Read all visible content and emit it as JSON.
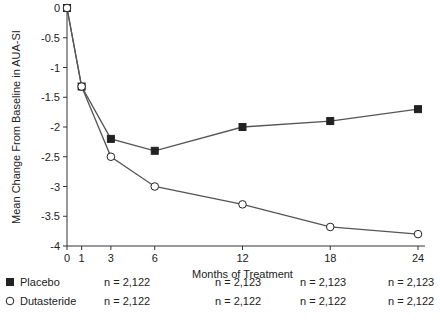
{
  "chart_data": {
    "type": "line",
    "x_label": "Months of Treatment",
    "y_label": "Mean Change From Baseline in AUA-SI",
    "x": [
      0,
      1,
      3,
      6,
      12,
      18,
      24
    ],
    "xlim": [
      0,
      24
    ],
    "xticks": [
      0,
      1,
      3,
      6,
      12,
      18,
      24
    ],
    "ylim": [
      -4,
      0
    ],
    "yticks": [
      0,
      -0.5,
      -1,
      -1.5,
      -2,
      -2.5,
      -3,
      -3.5,
      -4
    ],
    "grid": false,
    "series": [
      {
        "name": "Placebo",
        "color": "#222222",
        "marker": "square",
        "values": [
          0,
          -1.32,
          -2.2,
          -2.4,
          -2.0,
          -1.9,
          -1.7
        ],
        "n_labels": [
          "n = 2,122",
          "n = 2,123",
          "n = 2,123",
          "n = 2,123"
        ]
      },
      {
        "name": "Dutasteride",
        "color": "#222222",
        "marker": "circle",
        "values": [
          0,
          -1.32,
          -2.5,
          -3.0,
          -3.3,
          -3.68,
          -3.8
        ],
        "n_labels": [
          "n = 2,122",
          "n = 2,122",
          "n = 2,122",
          "n = 2,122"
        ]
      }
    ]
  }
}
